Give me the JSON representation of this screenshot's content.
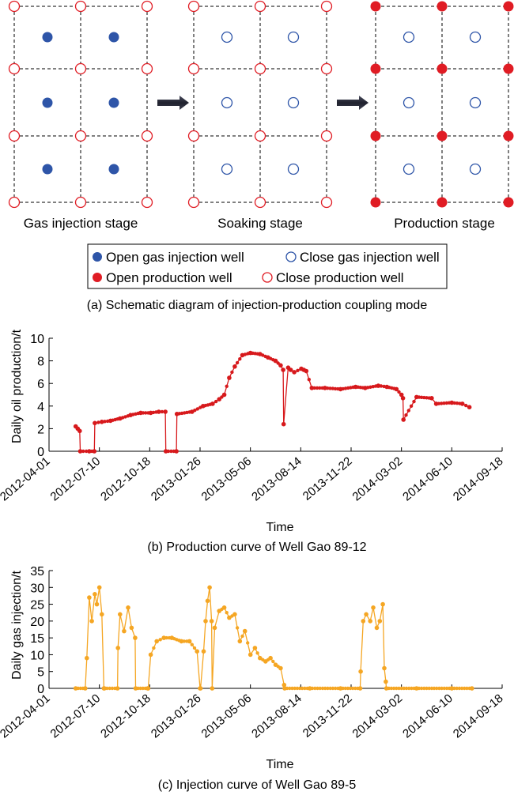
{
  "diagram": {
    "stages": [
      {
        "label": "Gas injection stage",
        "inner": "open-injection",
        "outer": "closed-production"
      },
      {
        "label": "Soaking stage",
        "inner": "closed-injection",
        "outer": "closed-production"
      },
      {
        "label": "Production stage",
        "inner": "closed-injection",
        "outer": "open-production"
      }
    ],
    "legend": [
      {
        "symbol": "open-injection",
        "label": "Open gas injection well"
      },
      {
        "symbol": "closed-injection",
        "label": "Close gas injection well"
      },
      {
        "symbol": "open-production",
        "label": "Open production well"
      },
      {
        "symbol": "closed-production",
        "label": "Close production well"
      }
    ],
    "caption": "(a) Schematic diagram of injection-production coupling mode",
    "colors": {
      "injection": "#2e55a8",
      "production": "#e01c24",
      "arrow": "#2b2d42"
    }
  },
  "chart_data": [
    {
      "type": "line",
      "caption": "(b) Production curve of Well Gao 89-12",
      "xlabel": "Time",
      "ylabel": "Daily oil production/t",
      "ylim": [
        0,
        10
      ],
      "yticks": [
        0,
        2,
        4,
        6,
        8,
        10
      ],
      "xticks": [
        "2012-04-01",
        "2012-07-10",
        "2012-10-18",
        "2013-01-26",
        "2013-05-06",
        "2013-08-14",
        "2013-11-22",
        "2014-03-02",
        "2014-06-10",
        "2014-09-18"
      ],
      "color": "#d7191c",
      "series": [
        {
          "x": [
            "2012-05-24",
            "2012-05-28",
            "2012-06-01",
            "2012-06-02",
            "2012-06-20",
            "2012-06-30",
            "2012-07-01",
            "2012-07-15",
            "2012-08-01",
            "2012-08-20",
            "2012-09-10",
            "2012-09-30",
            "2012-10-20",
            "2012-11-05",
            "2012-11-18",
            "2012-11-19",
            "2012-12-10",
            "2012-12-11",
            "2013-01-10",
            "2013-02-01",
            "2013-02-20",
            "2013-03-05",
            "2013-03-15",
            "2013-03-25",
            "2013-04-05",
            "2013-04-20",
            "2013-05-06",
            "2013-05-25",
            "2013-06-10",
            "2013-06-25",
            "2013-07-05",
            "2013-07-10",
            "2013-07-11",
            "2013-07-20",
            "2013-07-25",
            "2013-08-01",
            "2013-08-15",
            "2013-08-20",
            "2013-08-25",
            "2013-09-05",
            "2013-10-01",
            "2013-11-01",
            "2013-12-01",
            "2013-12-20",
            "2014-01-15",
            "2014-02-01",
            "2014-02-20",
            "2014-03-02",
            "2014-03-05",
            "2014-03-06",
            "2014-04-01",
            "2014-05-01",
            "2014-05-10",
            "2014-06-10",
            "2014-07-01",
            "2014-07-15"
          ],
          "y": [
            2.2,
            2.0,
            1.8,
            0.0,
            0.0,
            0.0,
            2.5,
            2.6,
            2.7,
            2.9,
            3.2,
            3.4,
            3.4,
            3.5,
            3.5,
            0.0,
            0.0,
            3.3,
            3.5,
            4.0,
            4.2,
            4.6,
            5.0,
            6.5,
            7.5,
            8.5,
            8.7,
            8.6,
            8.3,
            8.0,
            7.6,
            7.2,
            2.4,
            7.4,
            7.2,
            7.0,
            7.3,
            7.2,
            7.1,
            5.6,
            5.6,
            5.5,
            5.7,
            5.6,
            5.8,
            5.7,
            5.5,
            5.0,
            4.7,
            2.8,
            4.8,
            4.7,
            4.2,
            4.3,
            4.2,
            3.9
          ]
        }
      ]
    },
    {
      "type": "line",
      "caption": "(c) Injection curve of Well Gao 89-5",
      "xlabel": "Time",
      "ylabel": "Daily gas injection/t",
      "ylim": [
        0,
        35
      ],
      "yticks": [
        0,
        5,
        10,
        15,
        20,
        25,
        30,
        35
      ],
      "xticks": [
        "2012-04-01",
        "2012-07-10",
        "2012-10-18",
        "2013-01-26",
        "2013-05-06",
        "2013-08-14",
        "2013-11-22",
        "2014-03-02",
        "2014-06-10",
        "2014-09-18"
      ],
      "color": "#f5a623",
      "series": [
        {
          "x": [
            "2012-05-24",
            "2012-06-12",
            "2012-06-15",
            "2012-06-20",
            "2012-06-25",
            "2012-07-01",
            "2012-07-05",
            "2012-07-10",
            "2012-07-15",
            "2012-07-19",
            "2012-07-20",
            "2012-08-15",
            "2012-08-16",
            "2012-08-20",
            "2012-08-28",
            "2012-09-05",
            "2012-09-12",
            "2012-09-19",
            "2012-09-20",
            "2012-10-14",
            "2012-10-15",
            "2012-10-20",
            "2012-11-01",
            "2012-11-15",
            "2012-12-01",
            "2012-12-20",
            "2013-01-05",
            "2013-01-20",
            "2013-01-26",
            "2013-01-27",
            "2013-02-02",
            "2013-02-06",
            "2013-02-10",
            "2013-02-14",
            "2013-02-18",
            "2013-02-19",
            "2013-02-24",
            "2013-03-05",
            "2013-03-15",
            "2013-03-25",
            "2013-04-05",
            "2013-04-15",
            "2013-04-25",
            "2013-05-06",
            "2013-05-15",
            "2013-05-25",
            "2013-06-05",
            "2013-06-15",
            "2013-06-25",
            "2013-07-05",
            "2013-07-12",
            "2013-07-13",
            "2013-09-01",
            "2013-11-01",
            "2013-12-10",
            "2013-12-11",
            "2013-12-16",
            "2013-12-22",
            "2013-12-30",
            "2014-01-05",
            "2014-01-12",
            "2014-01-18",
            "2014-01-24",
            "2014-01-27",
            "2014-01-30",
            "2014-01-31",
            "2014-04-01",
            "2014-06-10",
            "2014-07-20"
          ],
          "y": [
            0,
            0,
            9,
            27,
            20,
            28,
            25,
            30,
            22,
            0,
            0,
            0,
            12,
            22,
            17,
            24,
            18,
            15,
            0,
            0,
            0,
            10,
            14,
            15,
            15,
            14,
            14,
            11,
            0,
            0,
            11,
            20,
            26,
            30,
            20,
            0,
            18,
            23,
            24,
            21,
            22,
            14,
            17,
            10,
            12,
            9,
            8,
            9,
            7,
            6,
            1,
            0,
            0,
            0,
            0,
            5,
            20,
            22,
            20,
            24,
            18,
            20,
            25,
            6,
            2,
            0,
            0,
            0,
            0
          ]
        }
      ]
    }
  ]
}
